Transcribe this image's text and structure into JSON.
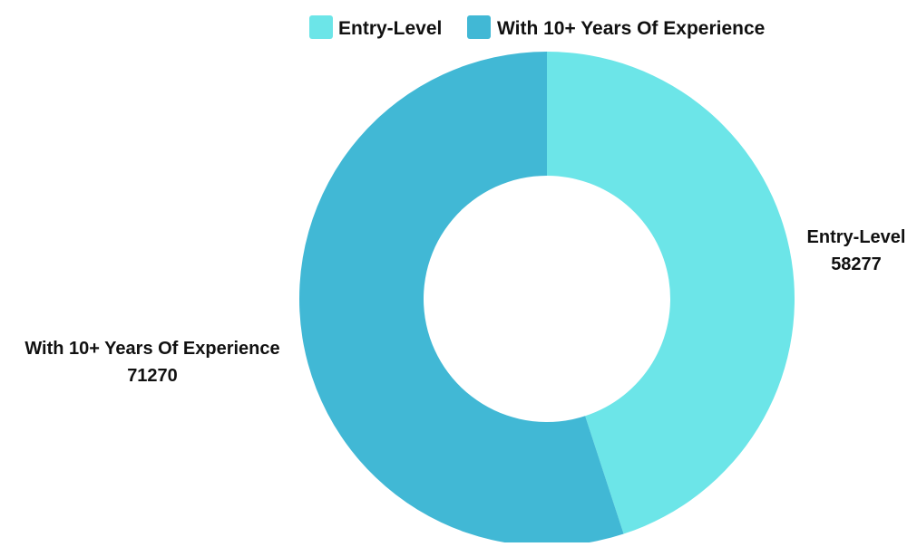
{
  "chart_data": {
    "type": "pie",
    "donut": true,
    "legend_position": "top",
    "slices": [
      {
        "label": "Entry-Level",
        "value": 58277,
        "color": "#6ce5e8"
      },
      {
        "label": "With 10+ Years Of Experience",
        "value": 71270,
        "color": "#41b8d5"
      }
    ]
  }
}
